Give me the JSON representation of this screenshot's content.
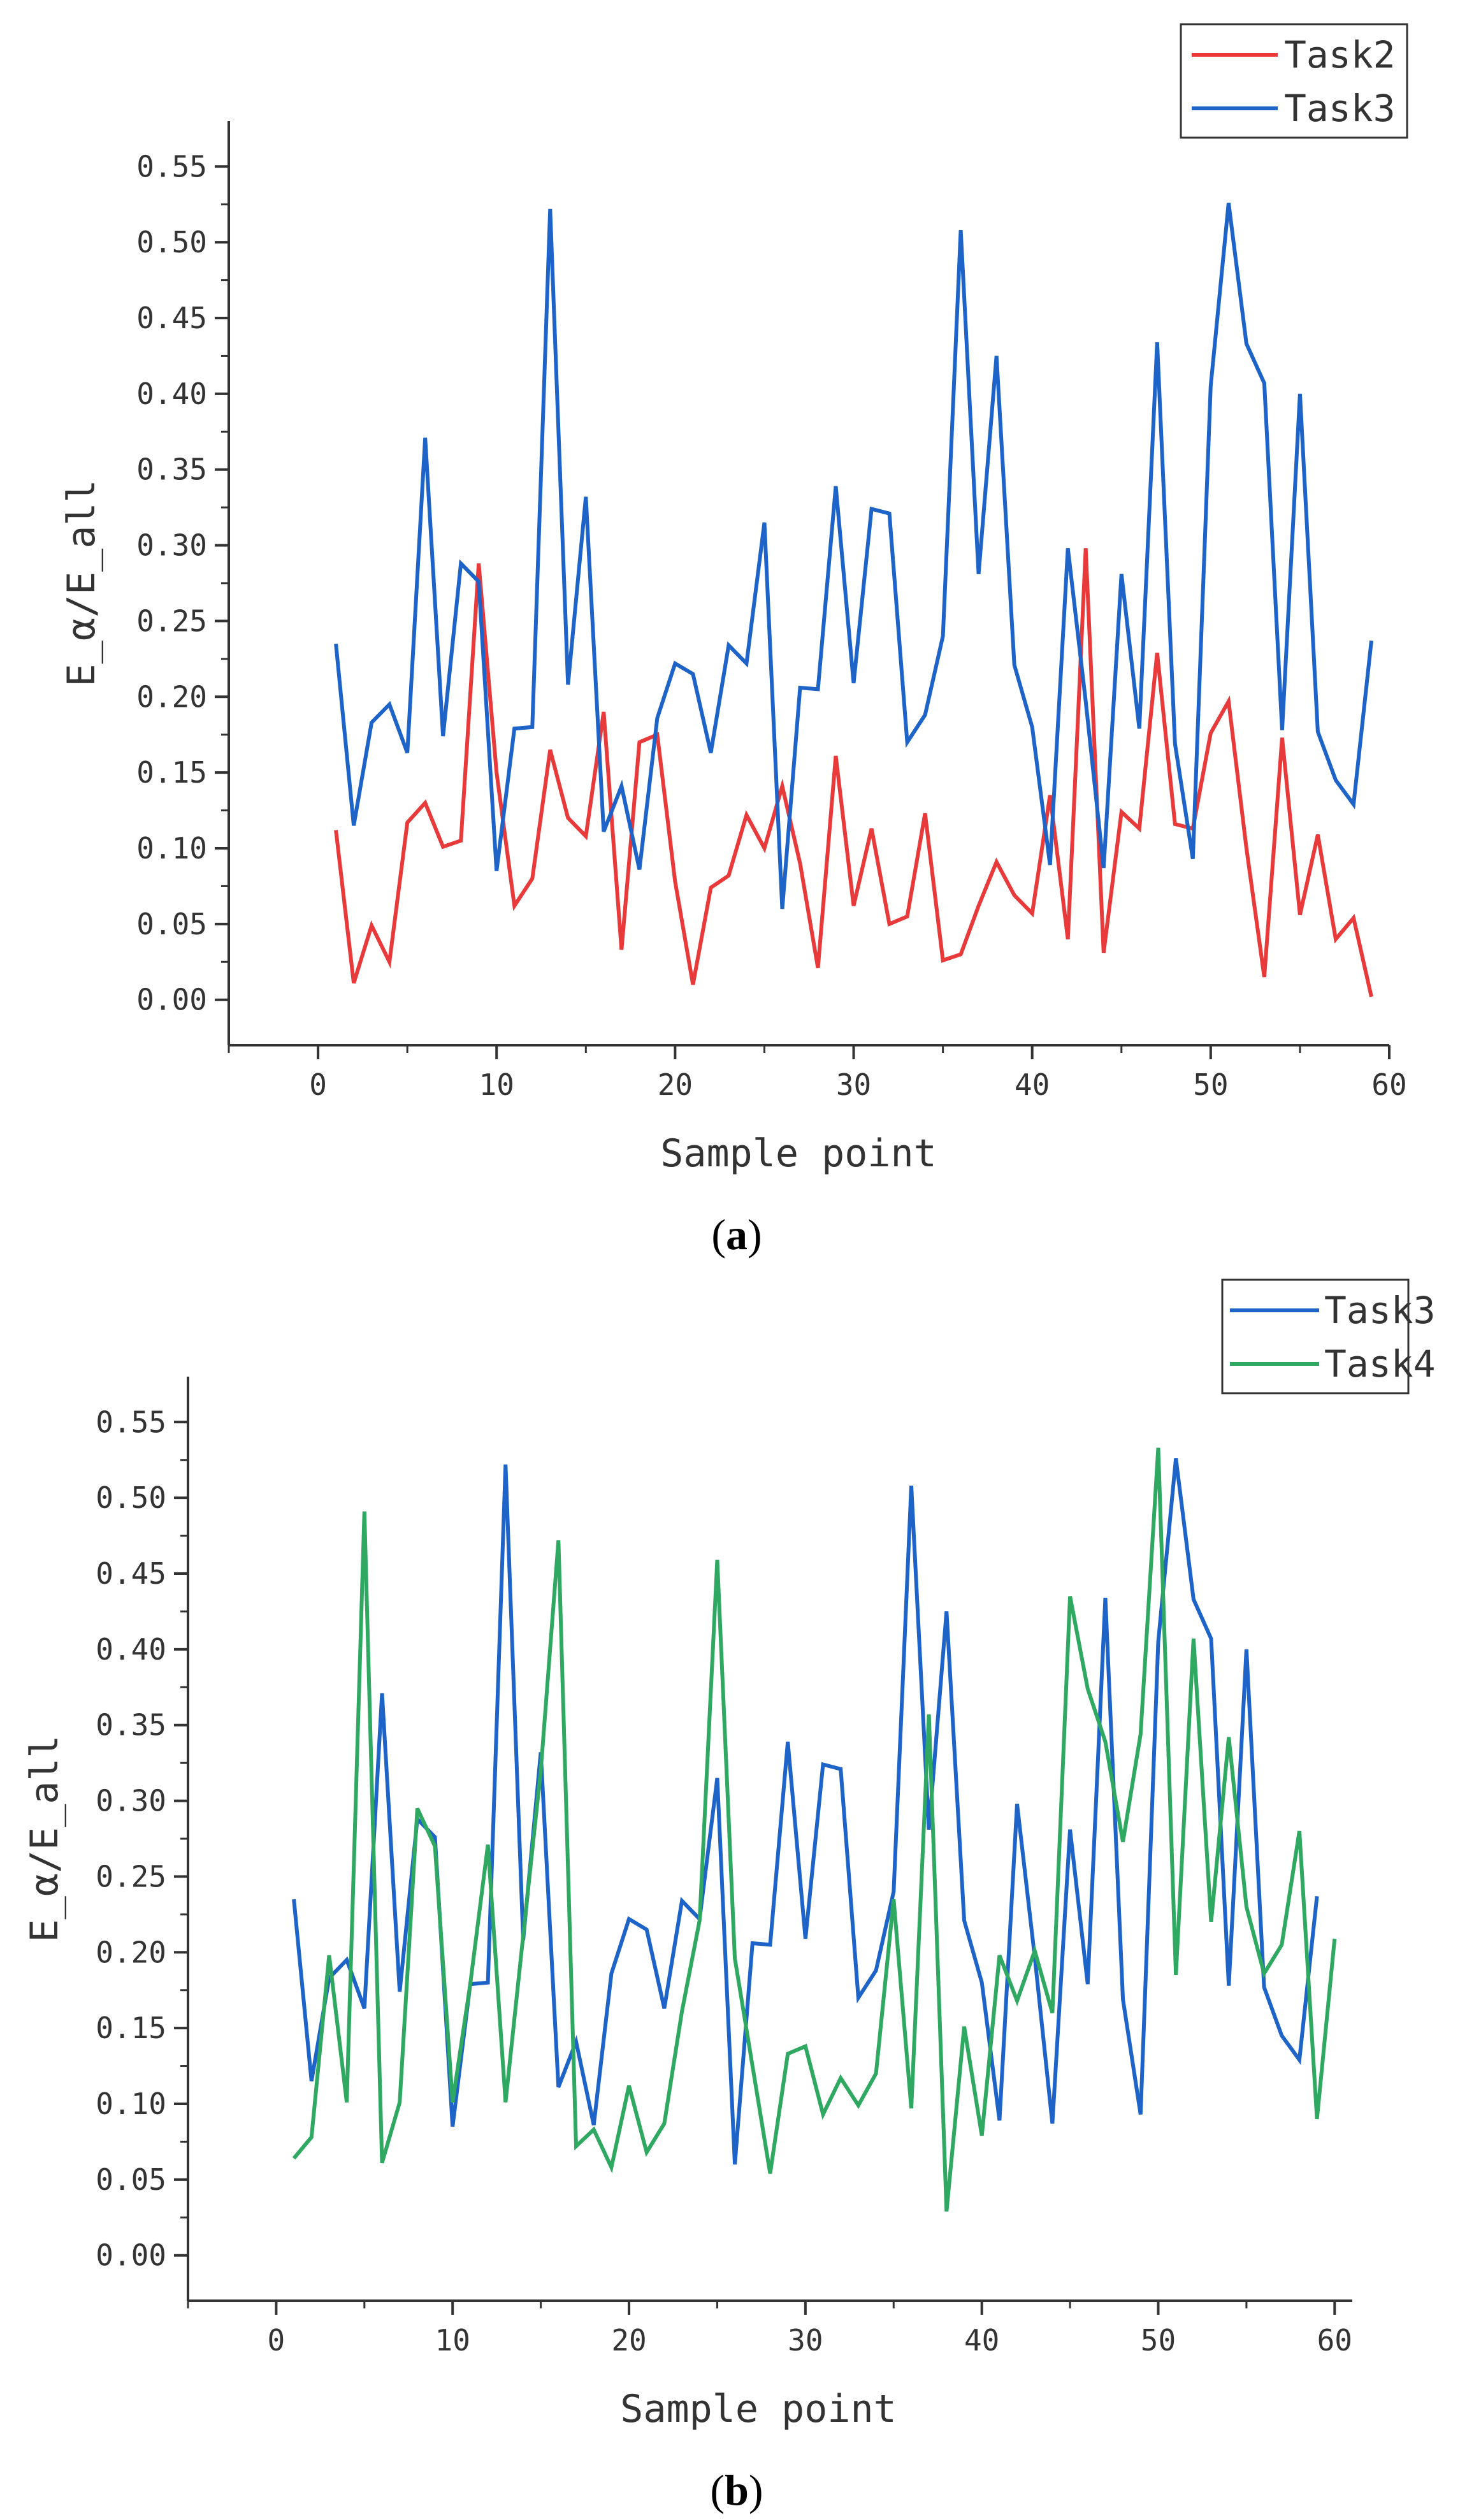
{
  "chart_data": [
    {
      "type": "line",
      "panel": "a",
      "xlabel": "Sample point",
      "ylabel": "E_α/E_all",
      "xlim": [
        -5,
        60
      ],
      "ylim": [
        -0.03,
        0.58
      ],
      "xticks": [
        0,
        10,
        20,
        30,
        40,
        50,
        60
      ],
      "yticks": [
        0.0,
        0.05,
        0.1,
        0.15,
        0.2,
        0.25,
        0.3,
        0.35,
        0.4,
        0.45,
        0.5,
        0.55
      ],
      "ytick_labels": [
        "0.00",
        "0.05",
        "0.10",
        "0.15",
        "0.20",
        "0.25",
        "0.30",
        "0.35",
        "0.40",
        "0.45",
        "0.50",
        "0.55"
      ],
      "legend_position": "top-right",
      "x": [
        1,
        2,
        3,
        4,
        5,
        6,
        7,
        8,
        9,
        10,
        11,
        12,
        13,
        14,
        15,
        16,
        17,
        18,
        19,
        20,
        21,
        22,
        23,
        24,
        25,
        26,
        27,
        28,
        29,
        30,
        31,
        32,
        33,
        34,
        35,
        36,
        37,
        38,
        39,
        40,
        41,
        42,
        43,
        44,
        45,
        46,
        47,
        48,
        49,
        50,
        51,
        52,
        53,
        54,
        55,
        56,
        57,
        58,
        59
      ],
      "series": [
        {
          "name": "Task2",
          "color": "#e8393b",
          "values": [
            0.112,
            0.011,
            0.049,
            0.025,
            0.117,
            0.13,
            0.101,
            0.105,
            0.288,
            0.15,
            0.062,
            0.08,
            0.165,
            0.12,
            0.108,
            0.19,
            0.033,
            0.17,
            0.175,
            0.078,
            0.01,
            0.074,
            0.082,
            0.122,
            0.1,
            0.141,
            0.09,
            0.021,
            0.161,
            0.062,
            0.113,
            0.05,
            0.055,
            0.123,
            0.026,
            0.03,
            0.062,
            0.091,
            0.069,
            0.057,
            0.135,
            0.04,
            0.298,
            0.031,
            0.124,
            0.113,
            0.229,
            0.116,
            0.113,
            0.176,
            0.197,
            0.1,
            0.015,
            0.173,
            0.056,
            0.109,
            0.04,
            0.054,
            0.002
          ]
        },
        {
          "name": "Task3",
          "color": "#1e63c7",
          "values": [
            0.235,
            0.115,
            0.183,
            0.195,
            0.163,
            0.371,
            0.174,
            0.288,
            0.276,
            0.085,
            0.179,
            0.18,
            0.522,
            0.208,
            0.332,
            0.111,
            0.141,
            0.086,
            0.186,
            0.222,
            0.215,
            0.163,
            0.234,
            0.222,
            0.315,
            0.06,
            0.206,
            0.205,
            0.339,
            0.209,
            0.324,
            0.321,
            0.17,
            0.188,
            0.24,
            0.508,
            0.281,
            0.425,
            0.221,
            0.18,
            0.089,
            0.298,
            0.197,
            0.087,
            0.281,
            0.179,
            0.434,
            0.169,
            0.093,
            0.405,
            0.526,
            0.433,
            0.407,
            0.178,
            0.4,
            0.177,
            0.145,
            0.129,
            0.237
          ]
        }
      ]
    },
    {
      "type": "line",
      "panel": "b",
      "xlabel": "Sample point",
      "ylabel": "E_α/E_all",
      "xlim": [
        -5,
        61
      ],
      "ylim": [
        -0.03,
        0.58
      ],
      "xticks": [
        0,
        10,
        20,
        30,
        40,
        50,
        60
      ],
      "yticks": [
        0.0,
        0.05,
        0.1,
        0.15,
        0.2,
        0.25,
        0.3,
        0.35,
        0.4,
        0.45,
        0.5,
        0.55
      ],
      "ytick_labels": [
        "0.00",
        "0.05",
        "0.10",
        "0.15",
        "0.20",
        "0.25",
        "0.30",
        "0.35",
        "0.40",
        "0.45",
        "0.50",
        "0.55"
      ],
      "legend_position": "top-right",
      "series": [
        {
          "name": "Task3",
          "color": "#1e63c7",
          "x": [
            1,
            2,
            3,
            4,
            5,
            6,
            7,
            8,
            9,
            10,
            11,
            12,
            13,
            14,
            15,
            16,
            17,
            18,
            19,
            20,
            21,
            22,
            23,
            24,
            25,
            26,
            27,
            28,
            29,
            30,
            31,
            32,
            33,
            34,
            35,
            36,
            37,
            38,
            39,
            40,
            41,
            42,
            43,
            44,
            45,
            46,
            47,
            48,
            49,
            50,
            51,
            52,
            53,
            54,
            55,
            56,
            57,
            58,
            59
          ],
          "values": [
            0.235,
            0.115,
            0.183,
            0.195,
            0.163,
            0.371,
            0.174,
            0.288,
            0.276,
            0.085,
            0.179,
            0.18,
            0.522,
            0.208,
            0.332,
            0.111,
            0.141,
            0.086,
            0.186,
            0.222,
            0.215,
            0.163,
            0.234,
            0.222,
            0.315,
            0.06,
            0.206,
            0.205,
            0.339,
            0.209,
            0.324,
            0.321,
            0.17,
            0.188,
            0.24,
            0.508,
            0.281,
            0.425,
            0.221,
            0.18,
            0.089,
            0.298,
            0.197,
            0.087,
            0.281,
            0.179,
            0.434,
            0.169,
            0.093,
            0.405,
            0.526,
            0.433,
            0.407,
            0.178,
            0.4,
            0.177,
            0.145,
            0.129,
            0.237
          ]
        },
        {
          "name": "Task4",
          "color": "#2fa862",
          "x": [
            1,
            2,
            3,
            4,
            5,
            6,
            7,
            8,
            9,
            10,
            11,
            12,
            13,
            14,
            15,
            16,
            17,
            18,
            19,
            20,
            21,
            22,
            23,
            24,
            25,
            26,
            27,
            28,
            29,
            30,
            31,
            32,
            33,
            34,
            35,
            36,
            37,
            38,
            39,
            40,
            41,
            42,
            43,
            44,
            45,
            46,
            47,
            48,
            49,
            50,
            51,
            52,
            53,
            54,
            55,
            56,
            57,
            58,
            59,
            60
          ],
          "values": [
            0.064,
            0.078,
            0.198,
            0.101,
            0.491,
            0.061,
            0.101,
            0.295,
            0.27,
            0.101,
            0.179,
            0.271,
            0.101,
            0.211,
            0.32,
            0.472,
            0.072,
            0.083,
            0.058,
            0.112,
            0.068,
            0.087,
            0.161,
            0.221,
            0.459,
            0.196,
            0.125,
            0.054,
            0.133,
            0.138,
            0.093,
            0.117,
            0.099,
            0.12,
            0.235,
            0.097,
            0.357,
            0.029,
            0.151,
            0.079,
            0.198,
            0.168,
            0.201,
            0.16,
            0.435,
            0.374,
            0.339,
            0.273,
            0.344,
            0.533,
            0.185,
            0.407,
            0.22,
            0.342,
            0.23,
            0.186,
            0.205,
            0.28,
            0.09,
            0.209
          ]
        }
      ]
    }
  ],
  "captions": {
    "a_open": "(",
    "a_letter": "a",
    "a_close": ")",
    "b_open": "(",
    "b_letter": "b",
    "b_close": ")"
  }
}
